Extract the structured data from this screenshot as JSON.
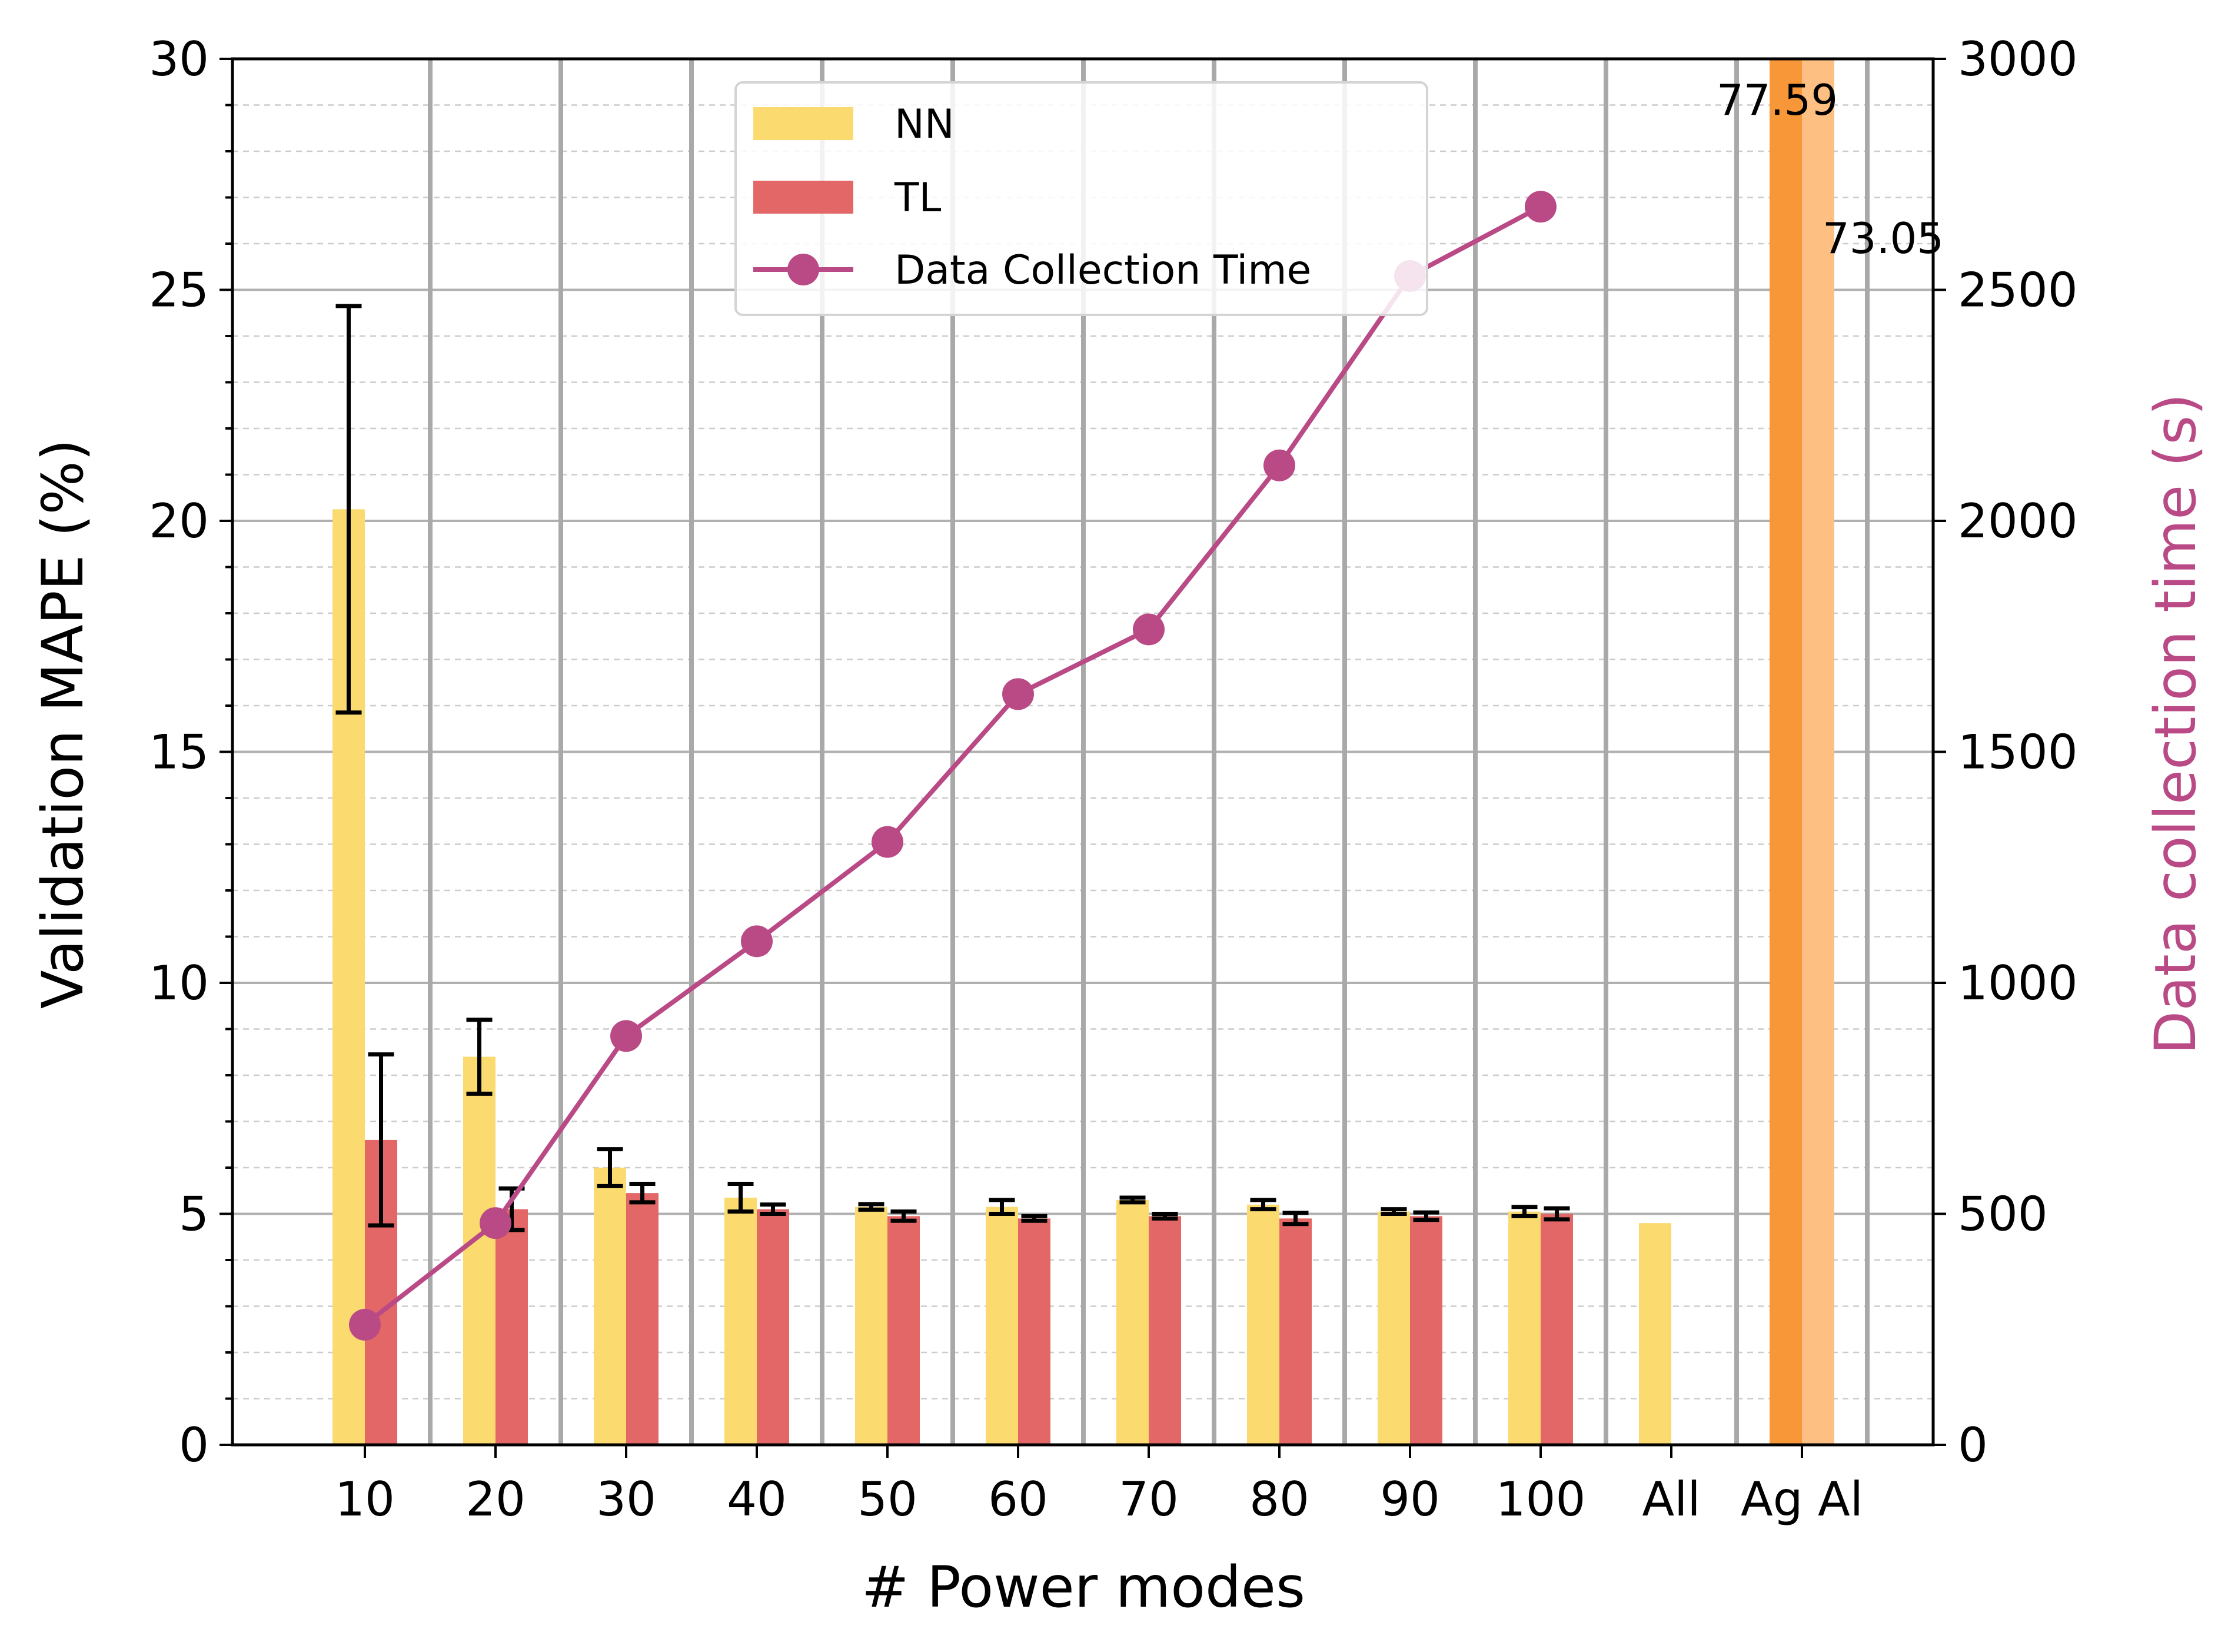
{
  "chart_data": {
    "type": "bar",
    "xlabel": "# Power modes",
    "ylabel": "Validation MAPE (%)",
    "y2label": "Data collection time (s)",
    "ylim": [
      0,
      30
    ],
    "y2lim": [
      0,
      3000
    ],
    "yticks": [
      "0",
      "5",
      "10",
      "15",
      "20",
      "25",
      "30"
    ],
    "y2ticks": [
      "0",
      "500",
      "1000",
      "1500",
      "2000",
      "2500",
      "3000"
    ],
    "categories": [
      "10",
      "20",
      "30",
      "40",
      "50",
      "60",
      "70",
      "80",
      "90",
      "100",
      "All",
      "Ag Al"
    ],
    "series": [
      {
        "name": "NN",
        "color": "#fbda6f",
        "values": [
          20.25,
          8.4,
          6.0,
          5.35,
          5.15,
          5.15,
          5.3,
          5.2,
          5.05,
          5.05,
          4.8,
          null
        ],
        "errors": [
          4.4,
          0.8,
          0.4,
          0.3,
          0.06,
          0.15,
          0.05,
          0.1,
          0.05,
          0.1,
          null,
          null
        ]
      },
      {
        "name": "TL",
        "color": "#e46767",
        "values": [
          6.6,
          5.1,
          5.45,
          5.1,
          4.95,
          4.9,
          4.95,
          4.9,
          4.95,
          5.0,
          null,
          null
        ],
        "errors": [
          1.85,
          0.45,
          0.2,
          0.1,
          0.1,
          0.05,
          0.05,
          0.12,
          0.08,
          0.12,
          null,
          null
        ]
      },
      {
        "name": "Data Collection Time",
        "type": "line",
        "axis": "right",
        "color": "#b94a86",
        "x": [
          "10",
          "20",
          "30",
          "40",
          "50",
          "60",
          "70",
          "80",
          "90",
          "100"
        ],
        "values": [
          260,
          480,
          885,
          1090,
          1305,
          1625,
          1765,
          2120,
          2530,
          2680
        ]
      }
    ],
    "aggregate_bars": {
      "category": "Ag Al",
      "values": [
        77.59,
        73.05
      ],
      "labels": [
        "77.59",
        "73.05"
      ],
      "colors": [
        "#f79737",
        "#fdbf82"
      ]
    },
    "legend": {
      "position": "top-center",
      "entries": [
        "NN",
        "TL",
        "Data Collection Time"
      ]
    },
    "grid": true
  }
}
